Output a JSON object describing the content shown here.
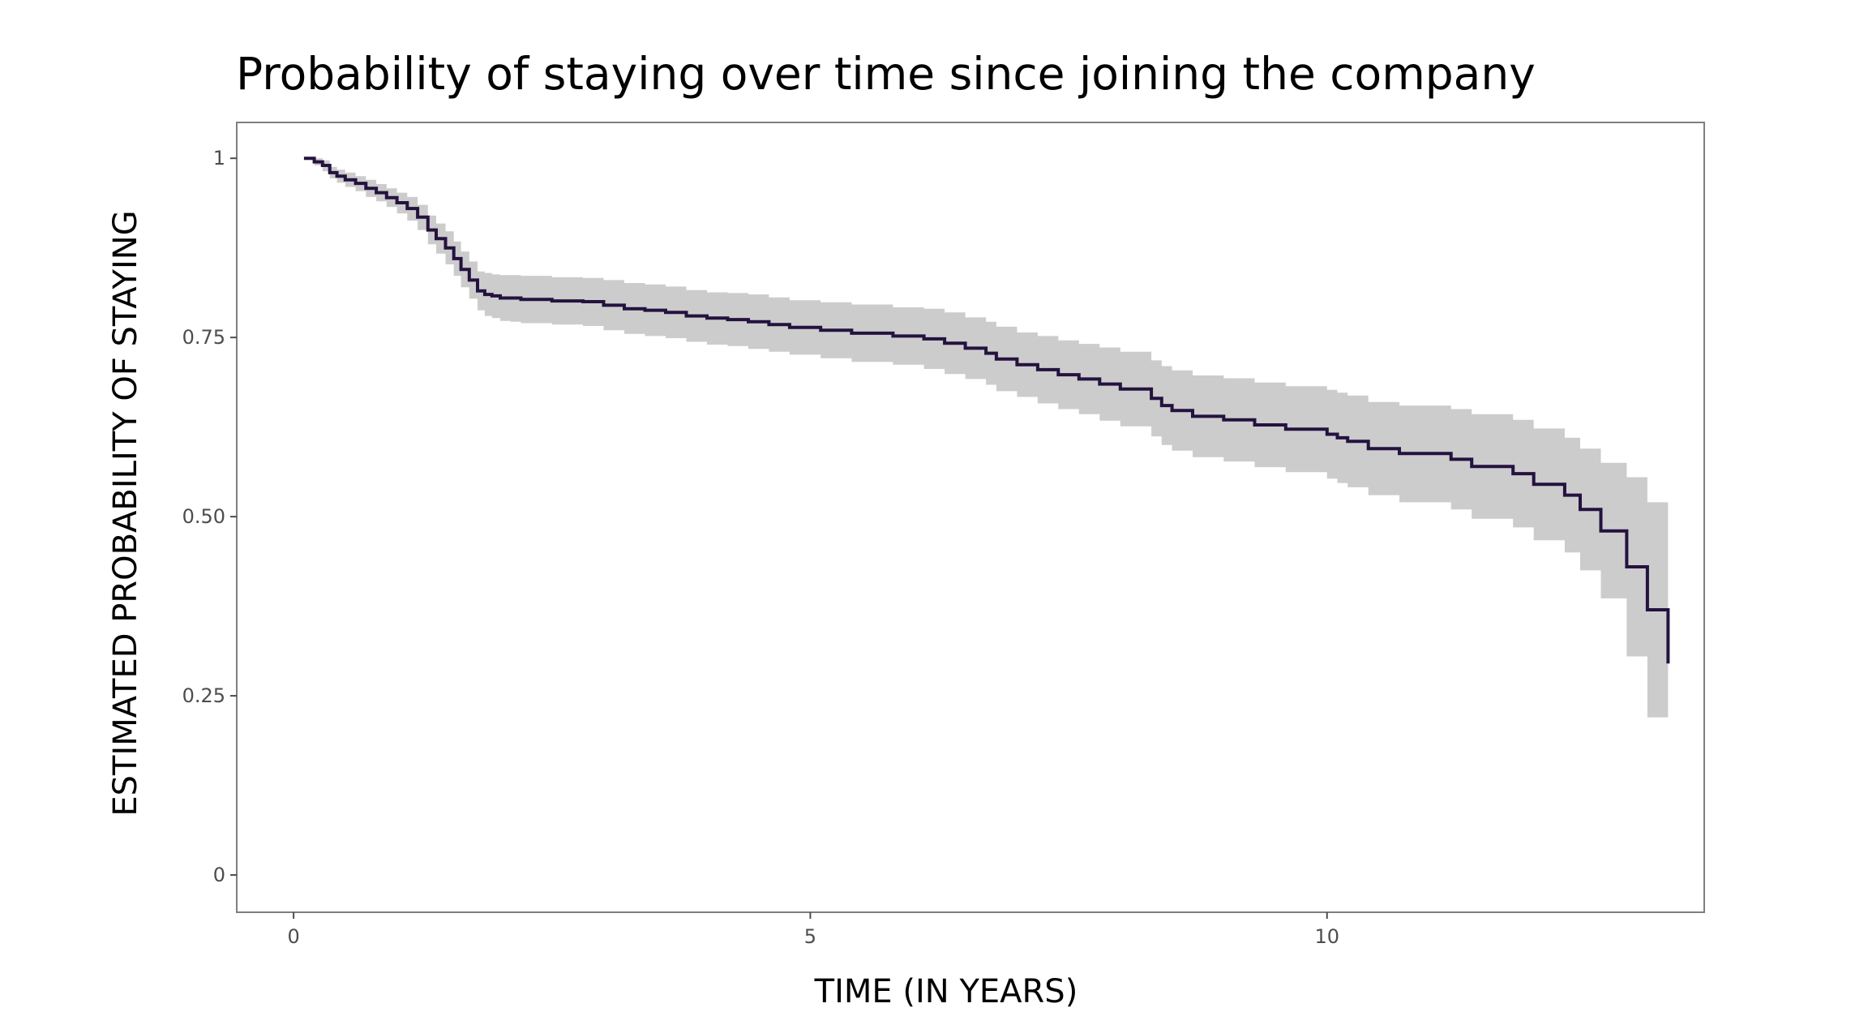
{
  "chart_data": {
    "type": "line",
    "title": "Probability of staying over time since joining the company",
    "xlabel": "TIME (IN YEARS)",
    "ylabel": "ESTIMATED PROBABILITY OF STAYING",
    "xlim": [
      -0.55,
      13.65
    ],
    "ylim": [
      -0.052,
      1.05
    ],
    "x_ticks": [
      0,
      5,
      10
    ],
    "x_tick_labels": [
      "0",
      "5",
      "10"
    ],
    "y_ticks": [
      0,
      0.25,
      0.5,
      0.75,
      1
    ],
    "y_tick_labels": [
      "0",
      "0.25",
      "0.50",
      "0.75",
      "1"
    ],
    "grid": false,
    "legend": "none",
    "colors": {
      "line": "#24123f",
      "band": "#cccccc",
      "panel_border": "#7f7f7f",
      "tick": "#4d4d4d"
    },
    "series": [
      {
        "x": [
          0.1,
          0.2,
          0.28,
          0.35,
          0.42,
          0.5,
          0.6,
          0.7,
          0.8,
          0.9,
          1.0,
          1.1,
          1.2,
          1.3,
          1.38,
          1.47,
          1.55,
          1.62,
          1.7,
          1.78,
          1.85,
          1.92,
          2.0,
          2.1,
          2.2,
          2.5,
          2.8,
          3.0,
          3.2,
          3.4,
          3.6,
          3.8,
          4.0,
          4.2,
          4.4,
          4.6,
          4.8,
          5.1,
          5.4,
          5.8,
          6.1,
          6.3,
          6.5,
          6.7,
          6.8,
          7.0,
          7.2,
          7.4,
          7.6,
          7.8,
          8.0,
          8.3,
          8.4,
          8.5,
          8.7,
          9.0,
          9.3,
          9.6,
          10.0,
          10.1,
          10.2,
          10.4,
          10.7,
          11.2,
          11.4,
          11.8,
          12.0,
          12.3,
          12.45,
          12.65,
          12.9,
          13.1
        ],
        "y": [
          1.0,
          0.995,
          0.99,
          0.98,
          0.975,
          0.97,
          0.965,
          0.958,
          0.952,
          0.945,
          0.938,
          0.93,
          0.918,
          0.9,
          0.888,
          0.875,
          0.86,
          0.845,
          0.83,
          0.815,
          0.81,
          0.808,
          0.805,
          0.805,
          0.803,
          0.801,
          0.8,
          0.795,
          0.79,
          0.788,
          0.785,
          0.78,
          0.777,
          0.775,
          0.772,
          0.768,
          0.764,
          0.76,
          0.756,
          0.752,
          0.748,
          0.742,
          0.735,
          0.728,
          0.72,
          0.712,
          0.705,
          0.698,
          0.692,
          0.685,
          0.678,
          0.665,
          0.655,
          0.648,
          0.64,
          0.635,
          0.628,
          0.622,
          0.615,
          0.61,
          0.605,
          0.595,
          0.588,
          0.58,
          0.57,
          0.56,
          0.545,
          0.53,
          0.51,
          0.48,
          0.43,
          0.37
        ],
        "x_end": 13.3,
        "y_end": 0.295,
        "lower": [
          1.0,
          0.99,
          0.982,
          0.972,
          0.966,
          0.96,
          0.954,
          0.946,
          0.94,
          0.932,
          0.923,
          0.913,
          0.9,
          0.88,
          0.867,
          0.852,
          0.836,
          0.82,
          0.804,
          0.788,
          0.78,
          0.777,
          0.773,
          0.772,
          0.77,
          0.768,
          0.766,
          0.76,
          0.755,
          0.752,
          0.749,
          0.744,
          0.74,
          0.738,
          0.734,
          0.73,
          0.726,
          0.721,
          0.716,
          0.712,
          0.706,
          0.699,
          0.692,
          0.684,
          0.675,
          0.667,
          0.658,
          0.65,
          0.643,
          0.634,
          0.626,
          0.612,
          0.6,
          0.592,
          0.583,
          0.577,
          0.569,
          0.562,
          0.553,
          0.547,
          0.541,
          0.53,
          0.52,
          0.51,
          0.497,
          0.485,
          0.467,
          0.45,
          0.425,
          0.386,
          0.305,
          0.22
        ],
        "upper": [
          1.0,
          1.0,
          0.997,
          0.988,
          0.984,
          0.98,
          0.975,
          0.97,
          0.964,
          0.958,
          0.952,
          0.946,
          0.935,
          0.92,
          0.909,
          0.898,
          0.884,
          0.87,
          0.856,
          0.842,
          0.84,
          0.838,
          0.837,
          0.837,
          0.836,
          0.834,
          0.833,
          0.83,
          0.826,
          0.824,
          0.821,
          0.816,
          0.813,
          0.812,
          0.81,
          0.806,
          0.802,
          0.799,
          0.796,
          0.792,
          0.79,
          0.785,
          0.778,
          0.772,
          0.765,
          0.757,
          0.752,
          0.746,
          0.741,
          0.736,
          0.73,
          0.718,
          0.71,
          0.704,
          0.697,
          0.693,
          0.687,
          0.682,
          0.677,
          0.673,
          0.669,
          0.66,
          0.655,
          0.65,
          0.643,
          0.635,
          0.623,
          0.61,
          0.595,
          0.575,
          0.555,
          0.52
        ],
        "lower_end": 0.135,
        "upper_end": 0.475
      }
    ]
  }
}
